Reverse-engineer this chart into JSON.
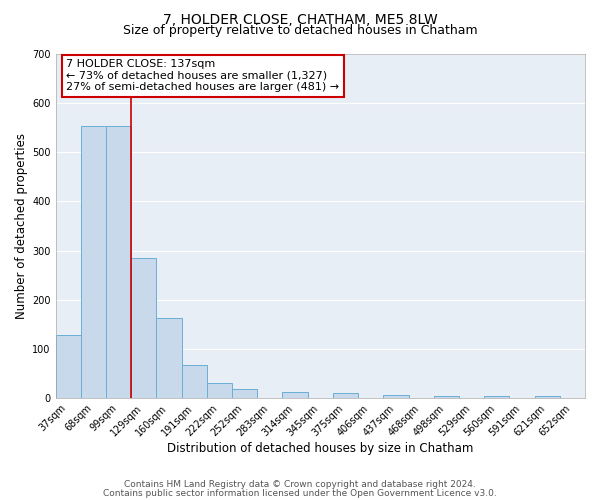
{
  "title": "7, HOLDER CLOSE, CHATHAM, ME5 8LW",
  "subtitle": "Size of property relative to detached houses in Chatham",
  "xlabel": "Distribution of detached houses by size in Chatham",
  "ylabel": "Number of detached properties",
  "footnote1": "Contains HM Land Registry data © Crown copyright and database right 2024.",
  "footnote2": "Contains public sector information licensed under the Open Government Licence v3.0.",
  "bar_labels": [
    "37sqm",
    "68sqm",
    "99sqm",
    "129sqm",
    "160sqm",
    "191sqm",
    "222sqm",
    "252sqm",
    "283sqm",
    "314sqm",
    "345sqm",
    "375sqm",
    "406sqm",
    "437sqm",
    "468sqm",
    "498sqm",
    "529sqm",
    "560sqm",
    "591sqm",
    "621sqm",
    "652sqm"
  ],
  "bar_values": [
    128,
    554,
    554,
    285,
    163,
    68,
    31,
    18,
    0,
    13,
    0,
    10,
    0,
    7,
    0,
    5,
    0,
    5,
    0,
    5,
    0
  ],
  "bar_color": "#c8d9eb",
  "bar_edge_color": "#6aaed6",
  "ylim": [
    0,
    700
  ],
  "yticks": [
    0,
    100,
    200,
    300,
    400,
    500,
    600,
    700
  ],
  "property_line_color": "#cc0000",
  "annotation_line1": "7 HOLDER CLOSE: 137sqm",
  "annotation_line2": "← 73% of detached houses are smaller (1,327)",
  "annotation_line3": "27% of semi-detached houses are larger (481) →",
  "background_color": "#ffffff",
  "plot_bg_color": "#e8eef5",
  "grid_color": "#ffffff",
  "title_fontsize": 10,
  "subtitle_fontsize": 9,
  "axis_label_fontsize": 8.5,
  "tick_fontsize": 7,
  "footnote_fontsize": 6.5,
  "annotation_fontsize": 8
}
